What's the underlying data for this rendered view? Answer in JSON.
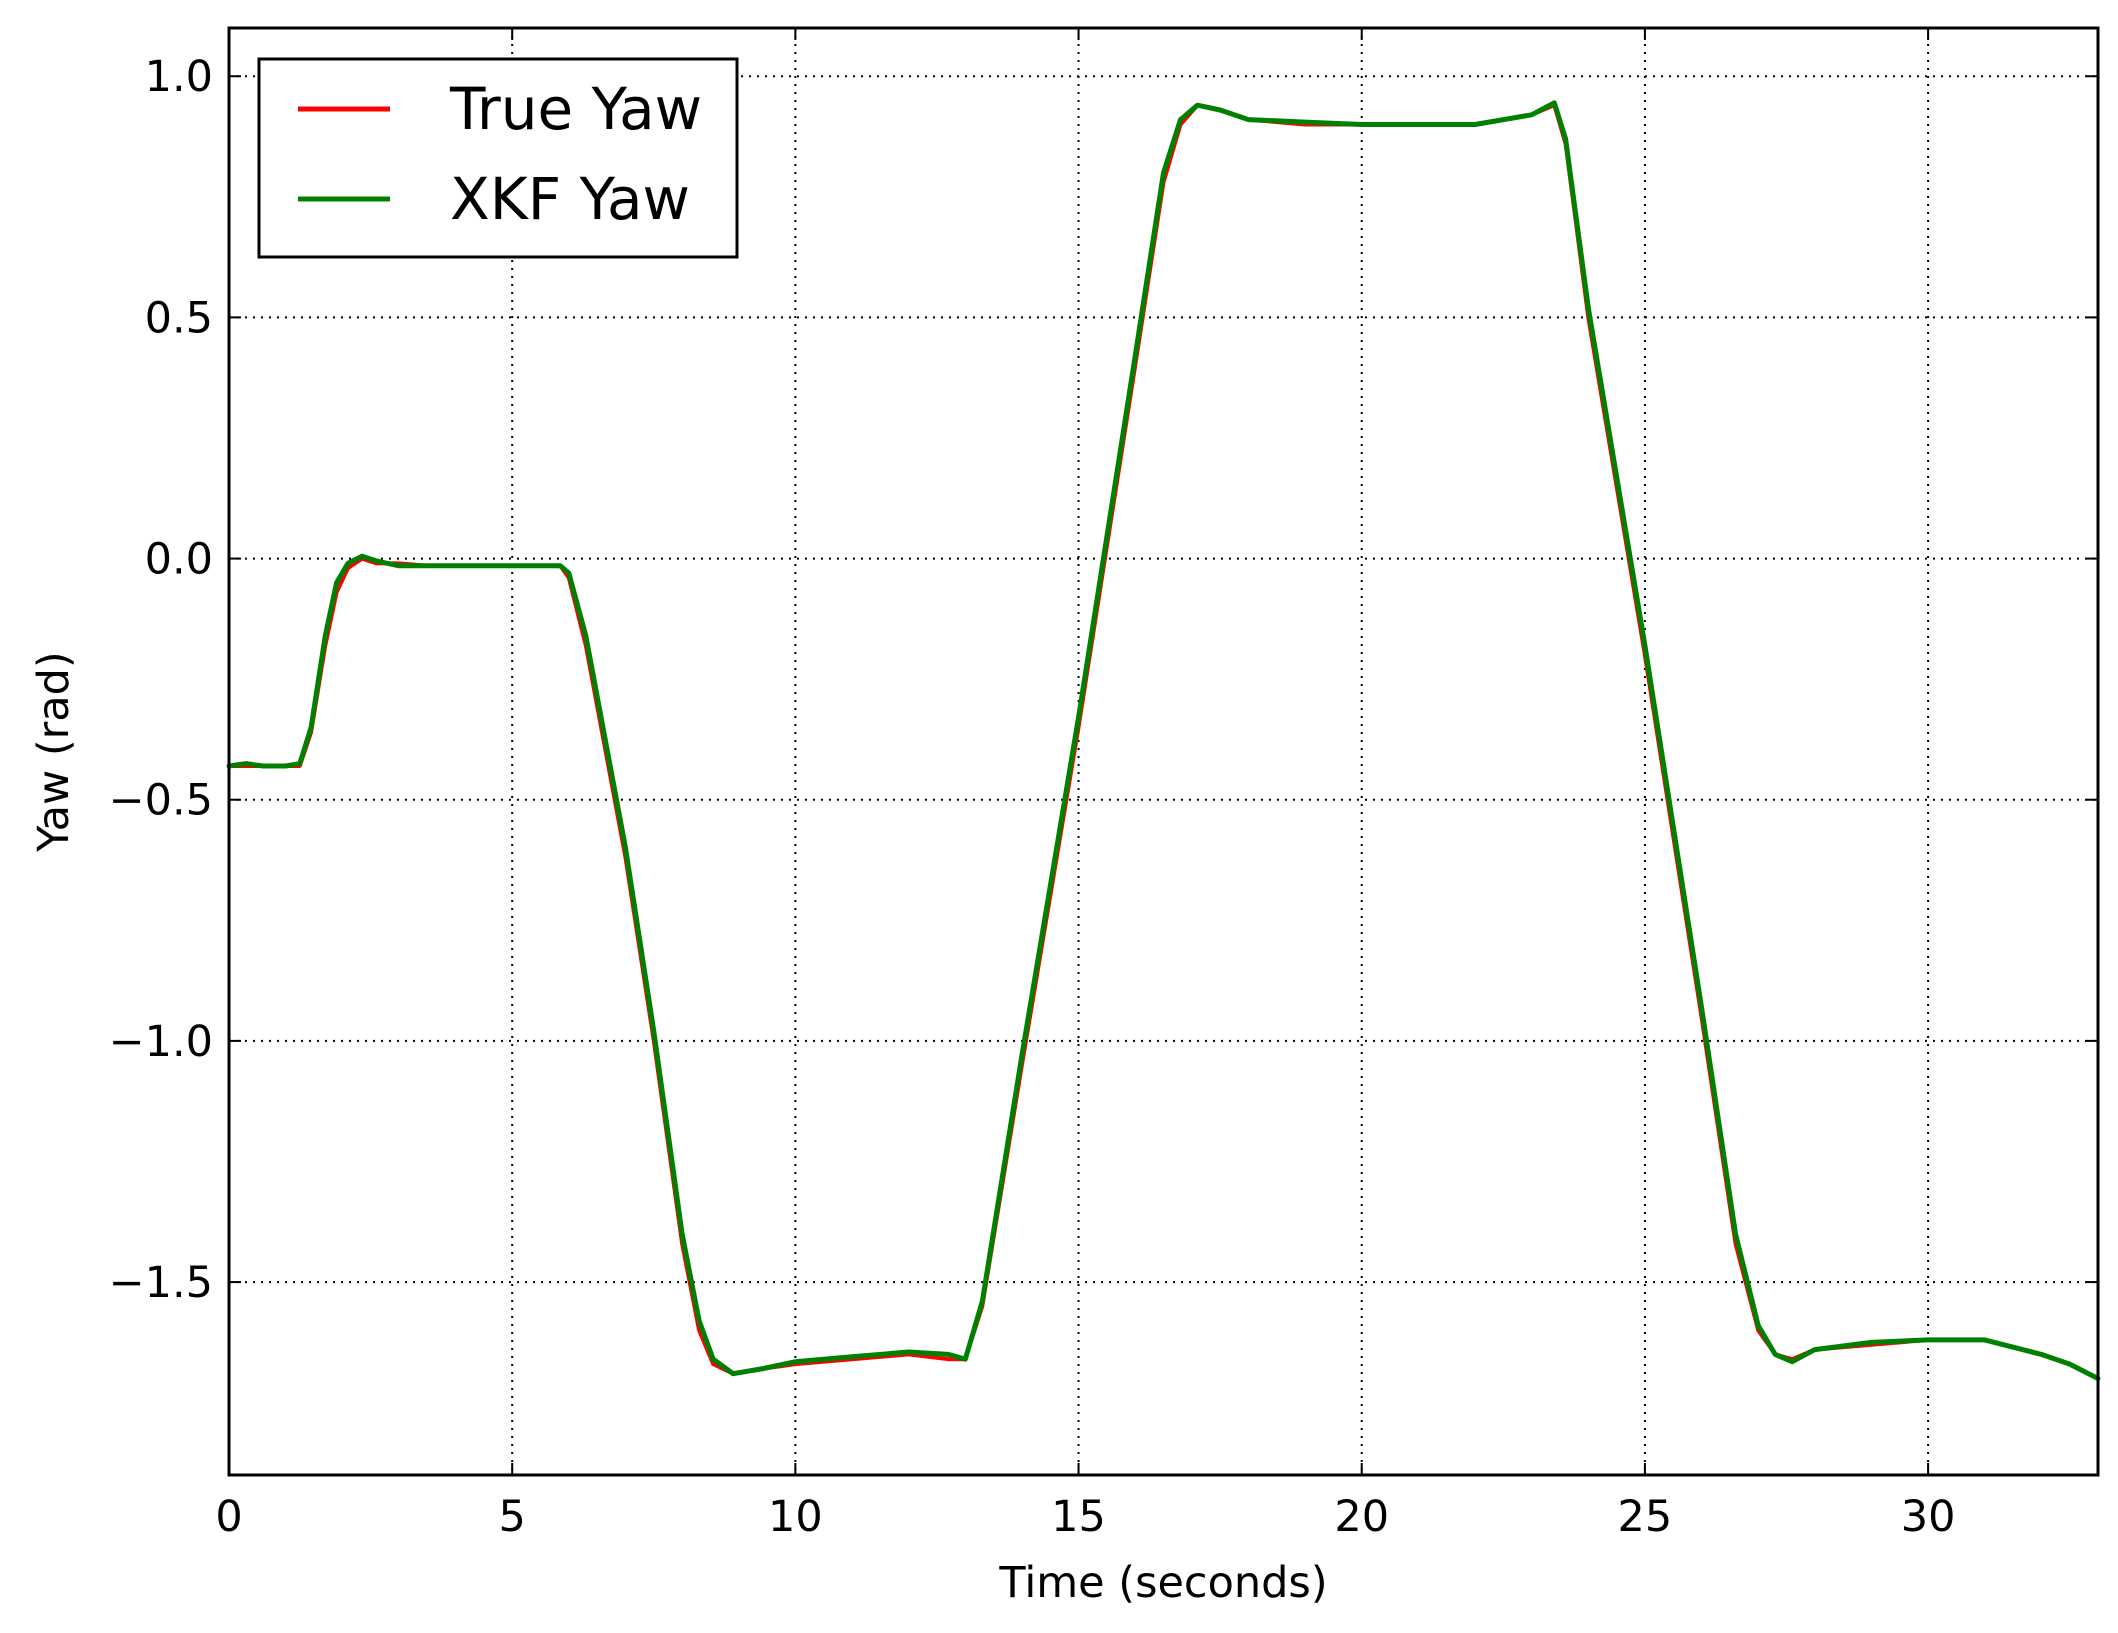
{
  "chart_data": {
    "type": "line",
    "title": "",
    "xlabel": "Time (seconds)",
    "ylabel": "Yaw (rad)",
    "xlim": [
      0,
      33
    ],
    "ylim": [
      -1.9,
      1.1
    ],
    "xticks": [
      0,
      5,
      10,
      15,
      20,
      25,
      30
    ],
    "yticks": [
      1.0,
      0.5,
      0.0,
      -0.5,
      -1.0,
      -1.5
    ],
    "xtick_labels": [
      "0",
      "5",
      "10",
      "15",
      "20",
      "25",
      "30"
    ],
    "ytick_labels": [
      "1.0",
      "0.5",
      "0.0",
      "−0.5",
      "−1.0",
      "−1.5"
    ],
    "grid": true,
    "legend_position": "top-left",
    "series": [
      {
        "name": "True Yaw",
        "color": "#ff0000",
        "x": [
          0,
          0.3,
          0.6,
          1.0,
          1.25,
          1.45,
          1.7,
          1.9,
          2.1,
          2.35,
          2.6,
          3.0,
          3.5,
          4.5,
          5.5,
          5.85,
          6.0,
          6.3,
          7.0,
          7.5,
          8.0,
          8.3,
          8.55,
          8.9,
          9.4,
          10.0,
          11.0,
          12.0,
          12.7,
          13.0,
          13.3,
          14.0,
          15.0,
          16.0,
          16.5,
          16.8,
          17.1,
          17.5,
          18.0,
          19.0,
          20.0,
          21.0,
          22.0,
          23.0,
          23.4,
          23.6,
          24.0,
          25.0,
          26.0,
          26.6,
          27.0,
          27.3,
          27.6,
          28.0,
          29.0,
          30.0,
          31.0,
          32.0,
          32.5,
          33.0
        ],
        "values": [
          -0.43,
          -0.43,
          -0.43,
          -0.43,
          -0.43,
          -0.36,
          -0.18,
          -0.07,
          -0.02,
          0.0,
          -0.01,
          -0.01,
          -0.015,
          -0.015,
          -0.015,
          -0.015,
          -0.04,
          -0.18,
          -0.62,
          -1.0,
          -1.42,
          -1.6,
          -1.67,
          -1.69,
          -1.68,
          -1.67,
          -1.66,
          -1.65,
          -1.66,
          -1.66,
          -1.55,
          -1.05,
          -0.35,
          0.4,
          0.78,
          0.9,
          0.94,
          0.93,
          0.91,
          0.9,
          0.9,
          0.9,
          0.9,
          0.92,
          0.94,
          0.86,
          0.5,
          -0.2,
          -0.95,
          -1.42,
          -1.6,
          -1.65,
          -1.66,
          -1.64,
          -1.63,
          -1.62,
          -1.62,
          -1.65,
          -1.67,
          -1.7
        ]
      },
      {
        "name": "XKF Yaw",
        "color": "#008000",
        "x": [
          0,
          0.3,
          0.6,
          1.0,
          1.25,
          1.45,
          1.7,
          1.9,
          2.1,
          2.35,
          2.6,
          3.0,
          3.5,
          4.5,
          5.5,
          5.85,
          6.0,
          6.3,
          7.0,
          7.5,
          8.0,
          8.3,
          8.55,
          8.9,
          9.4,
          10.0,
          11.0,
          12.0,
          12.7,
          13.0,
          13.3,
          14.0,
          15.0,
          16.0,
          16.5,
          16.8,
          17.1,
          17.5,
          18.0,
          19.0,
          20.0,
          21.0,
          22.0,
          23.0,
          23.4,
          23.6,
          24.0,
          25.0,
          26.0,
          26.6,
          27.0,
          27.3,
          27.6,
          28.0,
          29.0,
          30.0,
          31.0,
          32.0,
          32.5,
          33.0
        ],
        "values": [
          -0.43,
          -0.425,
          -0.43,
          -0.43,
          -0.425,
          -0.35,
          -0.16,
          -0.05,
          -0.01,
          0.005,
          -0.005,
          -0.015,
          -0.015,
          -0.015,
          -0.015,
          -0.015,
          -0.03,
          -0.16,
          -0.6,
          -0.98,
          -1.4,
          -1.58,
          -1.66,
          -1.69,
          -1.68,
          -1.665,
          -1.655,
          -1.645,
          -1.65,
          -1.66,
          -1.54,
          -1.03,
          -0.33,
          0.42,
          0.8,
          0.91,
          0.94,
          0.93,
          0.91,
          0.905,
          0.9,
          0.9,
          0.9,
          0.92,
          0.945,
          0.87,
          0.52,
          -0.18,
          -0.93,
          -1.4,
          -1.59,
          -1.65,
          -1.665,
          -1.64,
          -1.625,
          -1.62,
          -1.62,
          -1.65,
          -1.67,
          -1.7
        ]
      }
    ]
  }
}
